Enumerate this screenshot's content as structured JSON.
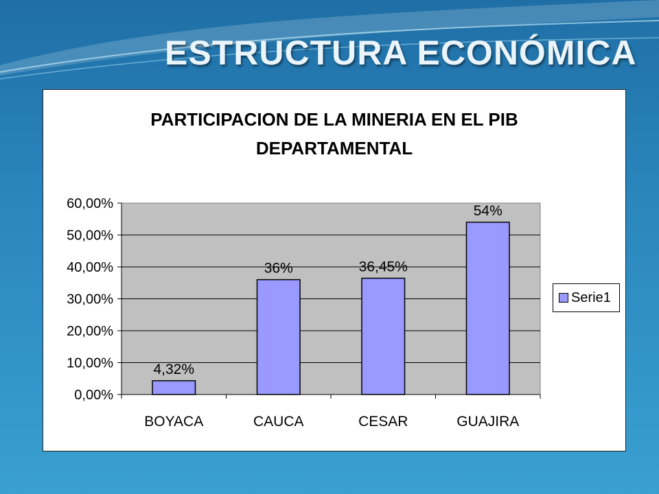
{
  "slide": {
    "title": "ESTRUCTURA ECONÓMICA"
  },
  "colors": {
    "bar": "#9999ff",
    "plot_area": "#c0c0c0",
    "background": "#2a86bd"
  },
  "chart_data": {
    "type": "bar",
    "title_lines": [
      "PARTICIPACION DE LA MINERIA EN EL PIB",
      "DEPARTAMENTAL"
    ],
    "categories": [
      "BOYACA",
      "CAUCA",
      "CESAR",
      "GUAJIRA"
    ],
    "series": [
      {
        "name": "Serie1",
        "values": [
          4.32,
          36,
          36.45,
          54
        ],
        "labels": [
          "4,32%",
          "36%",
          "36,45%",
          "54%"
        ]
      }
    ],
    "ylim": [
      0,
      60
    ],
    "yticks": [
      0,
      10,
      20,
      30,
      40,
      50,
      60
    ],
    "ytick_labels": [
      "0,00%",
      "10,00%",
      "20,00%",
      "30,00%",
      "40,00%",
      "50,00%",
      "60,00%"
    ],
    "grid": true,
    "legend": "right"
  }
}
